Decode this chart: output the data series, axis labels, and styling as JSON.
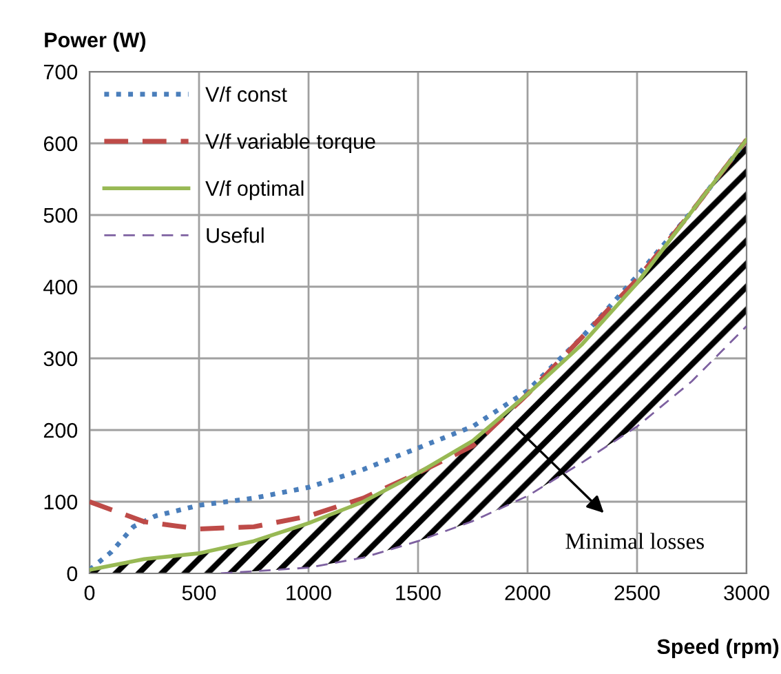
{
  "chart_data": {
    "type": "line",
    "xlabel": "Speed (rpm)",
    "ylabel": "Power (W)",
    "xlim": [
      0,
      3000
    ],
    "xticks": [
      0,
      500,
      1000,
      1500,
      2000,
      2500,
      3000
    ],
    "ylim": [
      0,
      700
    ],
    "yticks": [
      0,
      100,
      200,
      300,
      400,
      500,
      600,
      700
    ],
    "grid": true,
    "legend": "top left",
    "series": [
      {
        "name": "V/f const",
        "color": "#4a7ebb",
        "line_style": "dotted",
        "x": [
          0,
          100,
          200,
          300,
          500,
          750,
          1000,
          1250,
          1500,
          1750,
          2000,
          2250,
          2500,
          2750,
          3000
        ],
        "values": [
          5,
          30,
          65,
          80,
          95,
          105,
          120,
          145,
          175,
          205,
          255,
          330,
          415,
          505,
          605
        ]
      },
      {
        "name": "V/f variable torque",
        "color": "#be4b48",
        "line_style": "dashed",
        "x": [
          0,
          250,
          500,
          750,
          1000,
          1250,
          1500,
          1750,
          2000,
          2250,
          2500,
          2750,
          3000
        ],
        "values": [
          100,
          72,
          62,
          65,
          80,
          105,
          140,
          178,
          250,
          330,
          410,
          505,
          605
        ]
      },
      {
        "name": "V/f optimal",
        "color": "#98b954",
        "line_style": "solid",
        "x": [
          0,
          250,
          500,
          750,
          1000,
          1250,
          1500,
          1750,
          2000,
          2250,
          2500,
          2750,
          3000
        ],
        "values": [
          5,
          20,
          28,
          45,
          70,
          100,
          140,
          185,
          250,
          320,
          405,
          505,
          605
        ],
        "lower": [
          0,
          0,
          0,
          3,
          8,
          22,
          45,
          73,
          108,
          155,
          205,
          268,
          345
        ],
        "upper": [
          5,
          20,
          28,
          45,
          70,
          100,
          140,
          185,
          250,
          320,
          405,
          505,
          605
        ]
      },
      {
        "name": "Useful",
        "color": "#7d60a0",
        "line_style": "dashed",
        "x": [
          600,
          1000,
          1250,
          1500,
          1750,
          2000,
          2250,
          2500,
          2750,
          3000
        ],
        "values": [
          0,
          8,
          22,
          45,
          73,
          108,
          155,
          205,
          268,
          345
        ]
      }
    ],
    "annotations": [
      "Minimal losses"
    ]
  }
}
